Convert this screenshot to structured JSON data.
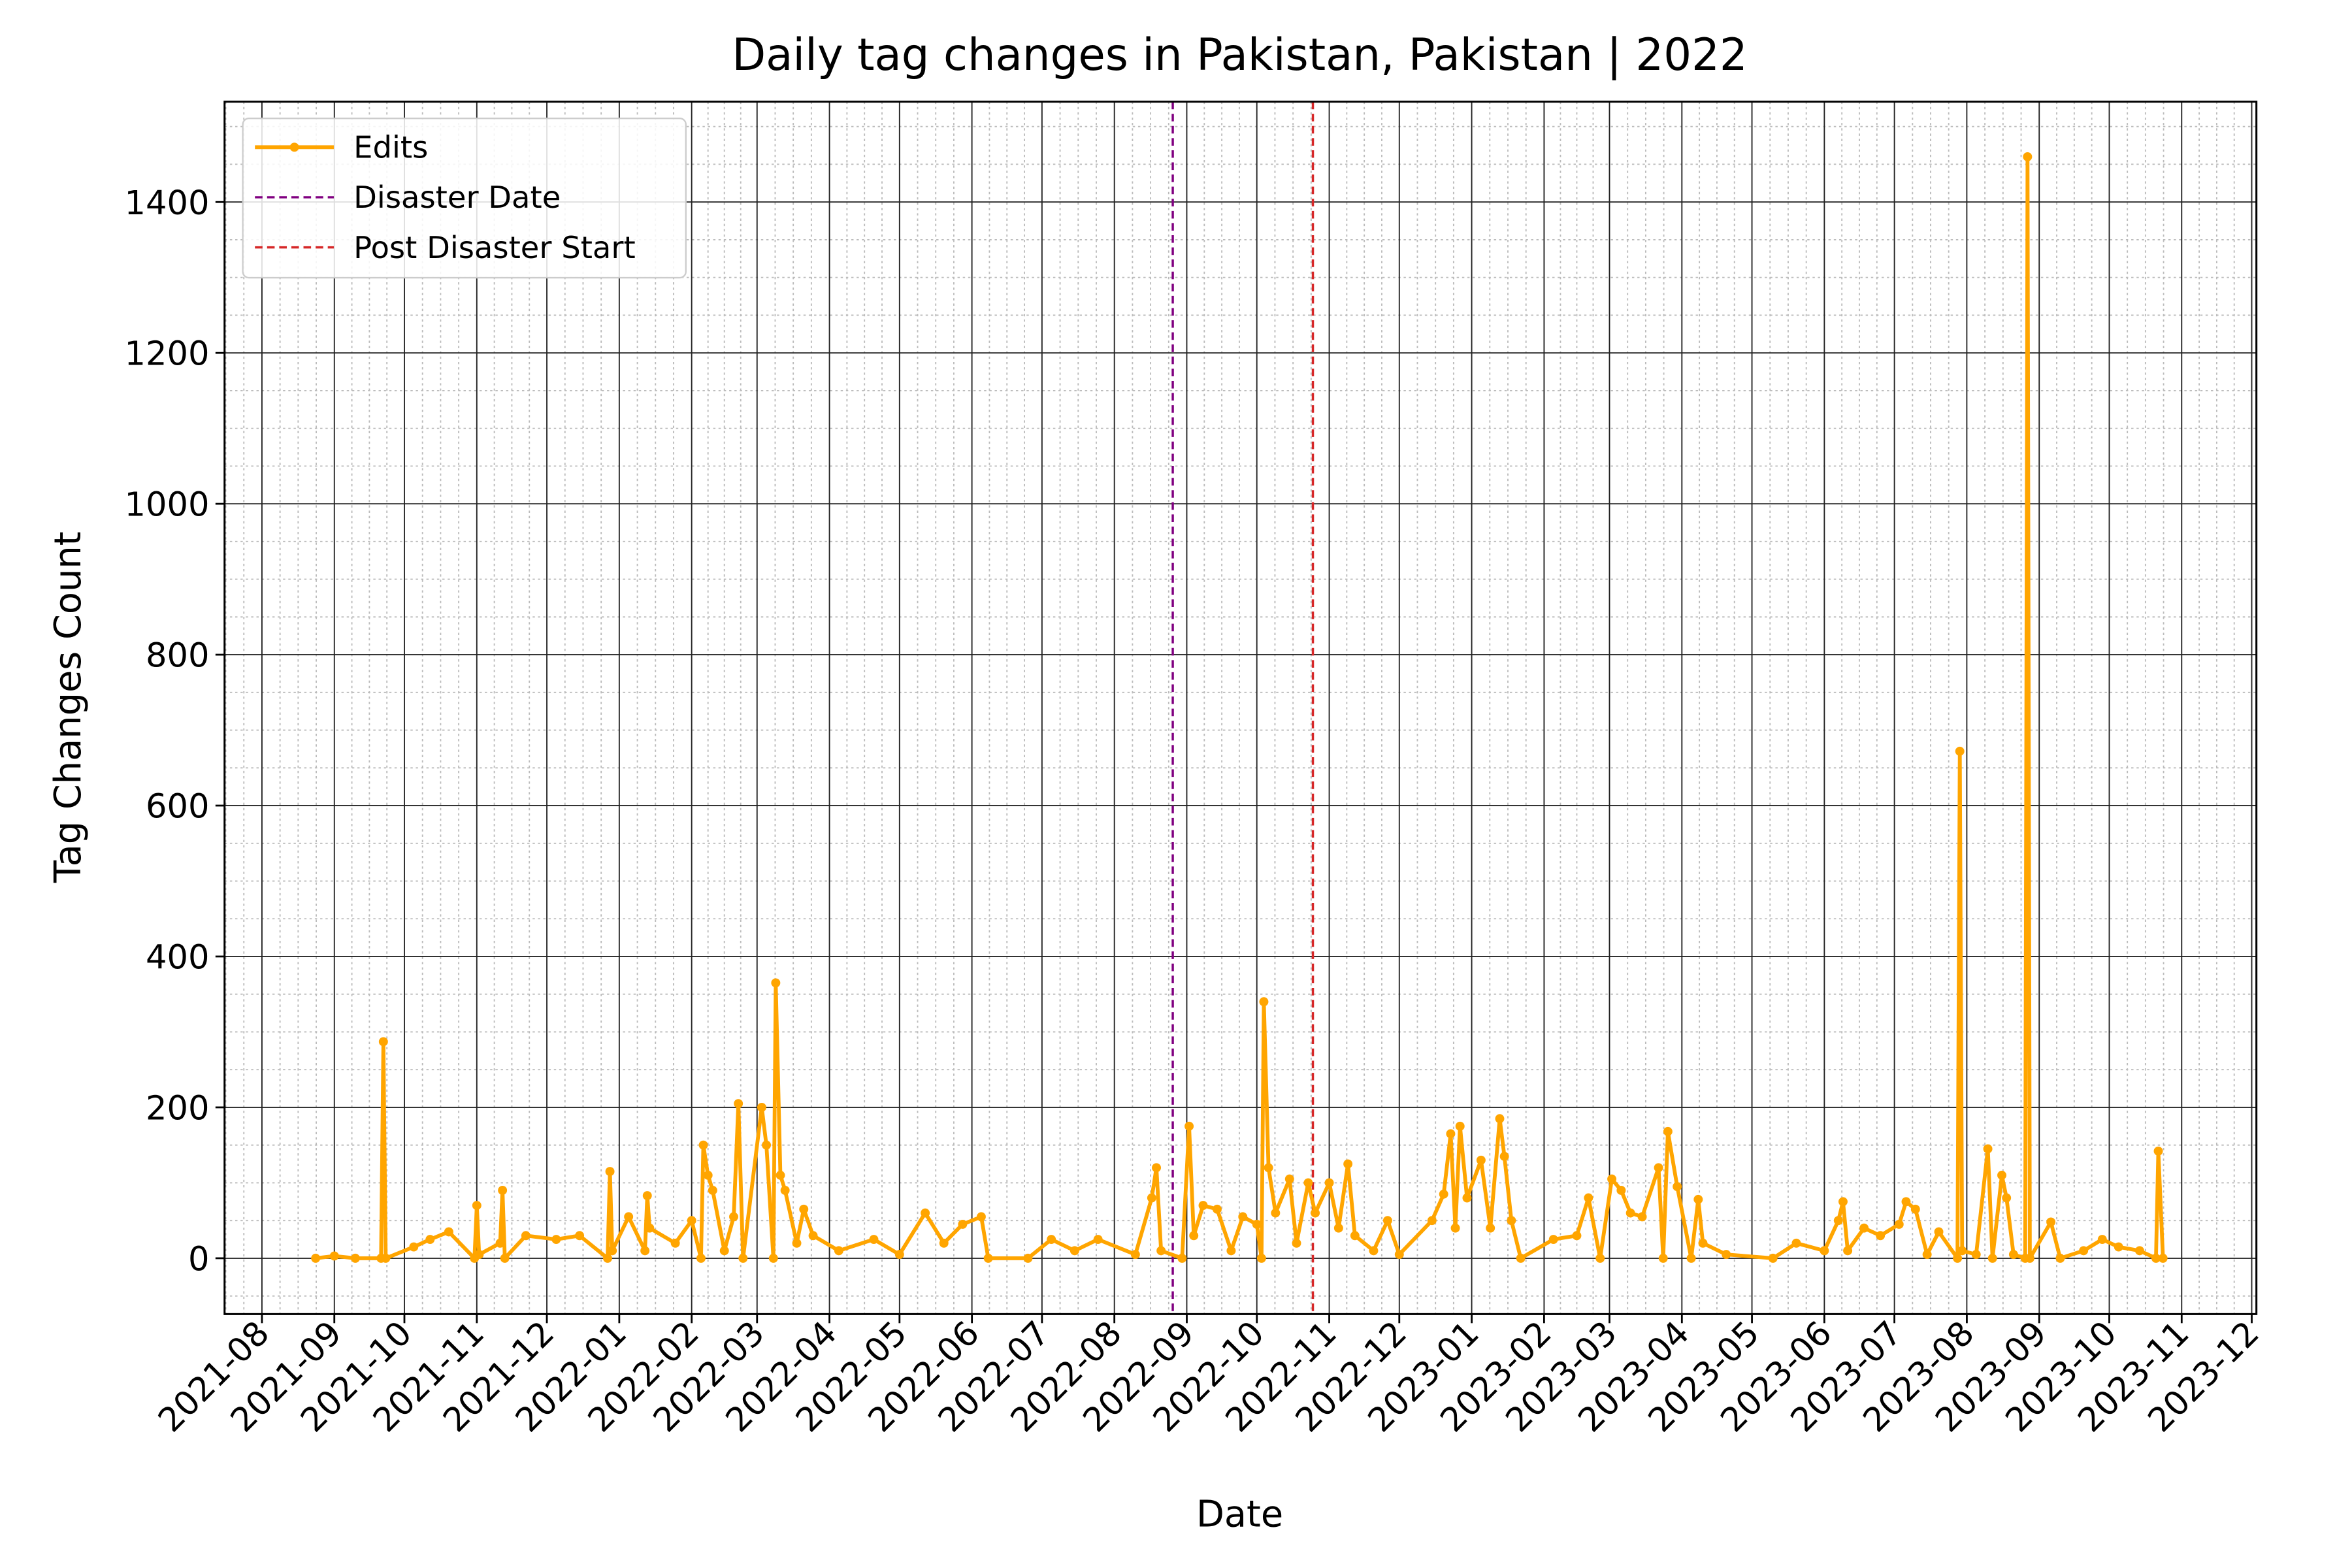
{
  "chart_data": {
    "type": "line",
    "title": "Daily tag changes in Pakistan, Pakistan | 2022",
    "x_label": "Date",
    "y_label": "Tag Changes Count",
    "x": [
      "2021-08-24",
      "2021-09-01",
      "2021-09-10",
      "2021-09-21",
      "2021-09-22",
      "2021-09-23",
      "2021-10-05",
      "2021-10-12",
      "2021-10-20",
      "2021-10-31",
      "2021-11-01",
      "2021-11-02",
      "2021-11-11",
      "2021-11-12",
      "2021-11-13",
      "2021-11-22",
      "2021-12-05",
      "2021-12-15",
      "2021-12-27",
      "2021-12-28",
      "2021-12-29",
      "2022-01-05",
      "2022-01-12",
      "2022-01-13",
      "2022-01-14",
      "2022-01-25",
      "2022-02-01",
      "2022-02-05",
      "2022-02-06",
      "2022-02-08",
      "2022-02-10",
      "2022-02-15",
      "2022-02-19",
      "2022-02-21",
      "2022-02-23",
      "2022-03-03",
      "2022-03-05",
      "2022-03-08",
      "2022-03-09",
      "2022-03-11",
      "2022-03-13",
      "2022-03-18",
      "2022-03-21",
      "2022-03-25",
      "2022-04-05",
      "2022-04-20",
      "2022-05-01",
      "2022-05-12",
      "2022-05-20",
      "2022-05-28",
      "2022-06-05",
      "2022-06-08",
      "2022-06-25",
      "2022-07-05",
      "2022-07-15",
      "2022-07-25",
      "2022-08-10",
      "2022-08-17",
      "2022-08-19",
      "2022-08-21",
      "2022-08-30",
      "2022-09-02",
      "2022-09-04",
      "2022-09-08",
      "2022-09-14",
      "2022-09-20",
      "2022-09-25",
      "2022-10-01",
      "2022-10-03",
      "2022-10-04",
      "2022-10-06",
      "2022-10-09",
      "2022-10-15",
      "2022-10-18",
      "2022-10-23",
      "2022-10-26",
      "2022-11-01",
      "2022-11-05",
      "2022-11-09",
      "2022-11-12",
      "2022-11-20",
      "2022-11-26",
      "2022-12-01",
      "2022-12-15",
      "2022-12-20",
      "2022-12-23",
      "2022-12-25",
      "2022-12-27",
      "2022-12-30",
      "2023-01-05",
      "2023-01-09",
      "2023-01-13",
      "2023-01-15",
      "2023-01-18",
      "2023-01-22",
      "2023-02-05",
      "2023-02-15",
      "2023-02-20",
      "2023-02-25",
      "2023-03-02",
      "2023-03-06",
      "2023-03-10",
      "2023-03-15",
      "2023-03-22",
      "2023-03-24",
      "2023-03-26",
      "2023-03-30",
      "2023-04-05",
      "2023-04-08",
      "2023-04-10",
      "2023-04-20",
      "2023-05-10",
      "2023-05-20",
      "2023-06-01",
      "2023-06-07",
      "2023-06-09",
      "2023-06-11",
      "2023-06-18",
      "2023-06-25",
      "2023-07-03",
      "2023-07-06",
      "2023-07-10",
      "2023-07-15",
      "2023-07-20",
      "2023-07-28",
      "2023-07-29",
      "2023-07-30",
      "2023-08-05",
      "2023-08-10",
      "2023-08-12",
      "2023-08-16",
      "2023-08-18",
      "2023-08-21",
      "2023-08-26",
      "2023-08-27",
      "2023-08-28",
      "2023-09-06",
      "2023-09-10",
      "2023-09-20",
      "2023-09-28",
      "2023-10-05",
      "2023-10-14",
      "2023-10-21",
      "2023-10-22",
      "2023-10-24"
    ],
    "series": [
      {
        "name": "Edits",
        "color": "#ffa500",
        "values": [
          0,
          3,
          0,
          0,
          287,
          0,
          15,
          25,
          35,
          0,
          70,
          5,
          20,
          90,
          0,
          30,
          25,
          30,
          0,
          115,
          10,
          55,
          10,
          83,
          40,
          20,
          50,
          0,
          150,
          110,
          90,
          10,
          55,
          205,
          0,
          200,
          150,
          0,
          365,
          110,
          90,
          20,
          65,
          30,
          10,
          25,
          5,
          60,
          20,
          45,
          55,
          0,
          0,
          25,
          10,
          25,
          5,
          80,
          120,
          10,
          0,
          175,
          30,
          70,
          65,
          10,
          55,
          45,
          0,
          340,
          120,
          60,
          105,
          20,
          100,
          60,
          100,
          40,
          125,
          30,
          10,
          50,
          5,
          50,
          85,
          165,
          40,
          175,
          80,
          130,
          40,
          185,
          135,
          50,
          0,
          25,
          30,
          80,
          0,
          105,
          90,
          60,
          55,
          120,
          0,
          168,
          95,
          0,
          78,
          20,
          5,
          0,
          20,
          10,
          50,
          75,
          10,
          40,
          30,
          45,
          75,
          65,
          5,
          35,
          0,
          672,
          10,
          5,
          145,
          0,
          110,
          80,
          5,
          0,
          1460,
          0,
          48,
          0,
          10,
          25,
          15,
          10,
          0,
          142,
          0
        ]
      }
    ],
    "vlines": [
      {
        "name": "Disaster Date",
        "x": "2022-08-26",
        "color": "#800080"
      },
      {
        "name": "Post Disaster Start",
        "x": "2022-10-25",
        "color": "#d62728"
      }
    ],
    "xlim": [
      "2021-07-16",
      "2023-12-03"
    ],
    "xticks": [
      "2021-08",
      "2021-09",
      "2021-10",
      "2021-11",
      "2021-12",
      "2022-01",
      "2022-02",
      "2022-03",
      "2022-04",
      "2022-05",
      "2022-06",
      "2022-07",
      "2022-08",
      "2022-09",
      "2022-10",
      "2022-11",
      "2022-12",
      "2023-01",
      "2023-02",
      "2023-03",
      "2023-04",
      "2023-05",
      "2023-06",
      "2023-07",
      "2023-08",
      "2023-09",
      "2023-10",
      "2023-11",
      "2023-12"
    ],
    "ylim": [
      -74,
      1533
    ],
    "yticks": [
      0,
      200,
      400,
      600,
      800,
      1000,
      1200,
      1400
    ],
    "grid": true,
    "legend": "upper left"
  }
}
